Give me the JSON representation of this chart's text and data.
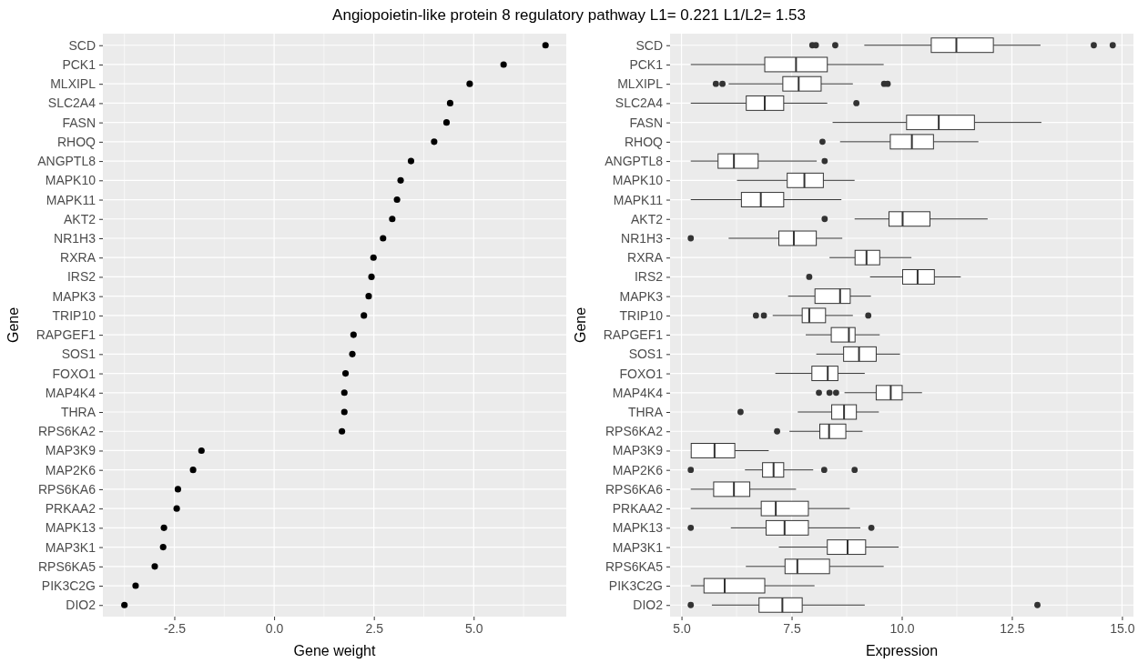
{
  "chart_data": [
    {
      "type": "scatter",
      "title": "Angiopoietin-like protein 8 regulatory pathway L1= 0.221 L1/L2= 1.53",
      "xlabel": "Gene weight",
      "ylabel": "Gene",
      "orientation": "horizontal",
      "grid": true,
      "marker": "circle",
      "color": "#000000",
      "categories": [
        "SCD",
        "PCK1",
        "MLXIPL",
        "SLC2A4",
        "FASN",
        "RHOQ",
        "ANGPTL8",
        "MAPK10",
        "MAPK11",
        "AKT2",
        "NR1H3",
        "RXRA",
        "IRS2",
        "MAPK3",
        "TRIP10",
        "RAPGEF1",
        "SOS1",
        "FOXO1",
        "MAP4K4",
        "THRA",
        "RPS6KA2",
        "MAP3K9",
        "MAP2K6",
        "RPS6KA6",
        "PRKAA2",
        "MAPK13",
        "MAP3K1",
        "RPS6KA5",
        "PIK3C2G",
        "DIO2"
      ],
      "values": [
        6.8,
        5.75,
        4.9,
        4.41,
        4.32,
        4.01,
        3.43,
        3.17,
        3.08,
        2.96,
        2.73,
        2.49,
        2.44,
        2.37,
        2.25,
        1.99,
        1.96,
        1.79,
        1.76,
        1.76,
        1.7,
        -1.82,
        -2.03,
        -2.41,
        -2.44,
        -2.76,
        -2.78,
        -2.99,
        -3.47,
        -3.75
      ],
      "xlim": [
        -4.29,
        7.32
      ],
      "xticks": [
        {
          "value": -2.5,
          "label": "-2.5"
        },
        {
          "value": 0,
          "label": "0.0"
        },
        {
          "value": 2.5,
          "label": "2.5"
        },
        {
          "value": 5,
          "label": "5.0"
        }
      ]
    },
    {
      "type": "box",
      "xlabel": "Expression",
      "ylabel": "Gene",
      "orientation": "horizontal",
      "grid": true,
      "color": "#333333",
      "categories": [
        "SCD",
        "PCK1",
        "MLXIPL",
        "SLC2A4",
        "FASN",
        "RHOQ",
        "ANGPTL8",
        "MAPK10",
        "MAPK11",
        "AKT2",
        "NR1H3",
        "RXRA",
        "IRS2",
        "MAPK3",
        "TRIP10",
        "RAPGEF1",
        "SOS1",
        "FOXO1",
        "MAP4K4",
        "THRA",
        "RPS6KA2",
        "MAP3K9",
        "MAP2K6",
        "RPS6KA6",
        "PRKAA2",
        "MAPK13",
        "MAP3K1",
        "RPS6KA5",
        "PIK3C2G",
        "DIO2"
      ],
      "boxes": [
        {
          "low": 9.15,
          "q1": 10.67,
          "median": 11.24,
          "q3": 12.08,
          "high": 13.15,
          "outliers": [
            7.97,
            8.05,
            8.49,
            14.36,
            14.79
          ]
        },
        {
          "low": 5.21,
          "q1": 6.89,
          "median": 7.6,
          "q3": 8.31,
          "high": 9.59
        },
        {
          "low": 6.07,
          "q1": 7.3,
          "median": 7.66,
          "q3": 8.17,
          "high": 8.89,
          "outliers": [
            5.78,
            5.93,
            9.6,
            9.68
          ]
        },
        {
          "low": 5.21,
          "q1": 6.47,
          "median": 6.89,
          "q3": 7.32,
          "high": 8.31,
          "outliers": [
            8.97
          ]
        },
        {
          "low": 8.43,
          "q1": 10.11,
          "median": 10.84,
          "q3": 11.65,
          "high": 13.17
        },
        {
          "low": 8.6,
          "q1": 9.74,
          "median": 10.23,
          "q3": 10.72,
          "high": 11.74,
          "outliers": [
            8.2
          ]
        },
        {
          "low": 5.21,
          "q1": 5.83,
          "median": 6.19,
          "q3": 6.74,
          "high": 8.07,
          "outliers": [
            8.25
          ]
        },
        {
          "low": 6.26,
          "q1": 7.4,
          "median": 7.79,
          "q3": 8.22,
          "high": 8.93
        },
        {
          "low": 5.21,
          "q1": 6.36,
          "median": 6.8,
          "q3": 7.32,
          "high": 8.63
        },
        {
          "low": 8.93,
          "q1": 9.71,
          "median": 10.02,
          "q3": 10.64,
          "high": 11.95,
          "outliers": [
            8.25
          ]
        },
        {
          "low": 6.07,
          "q1": 7.21,
          "median": 7.55,
          "q3": 8.06,
          "high": 8.65,
          "outliers": [
            5.21
          ]
        },
        {
          "low": 8.36,
          "q1": 8.94,
          "median": 9.2,
          "q3": 9.5,
          "high": 10.22
        },
        {
          "low": 9.28,
          "q1": 10.02,
          "median": 10.36,
          "q3": 10.74,
          "high": 11.34,
          "outliers": [
            7.9
          ]
        },
        {
          "low": 7.42,
          "q1": 8.03,
          "median": 8.6,
          "q3": 8.83,
          "high": 9.3
        },
        {
          "low": 7.07,
          "q1": 7.74,
          "median": 7.9,
          "q3": 8.27,
          "high": 8.89,
          "outliers": [
            6.69,
            6.87,
            9.24
          ]
        },
        {
          "low": 7.82,
          "q1": 8.4,
          "median": 8.8,
          "q3": 8.94,
          "high": 9.5
        },
        {
          "low": 8.06,
          "q1": 8.68,
          "median": 9.03,
          "q3": 9.42,
          "high": 9.96
        },
        {
          "low": 7.13,
          "q1": 7.96,
          "median": 8.32,
          "q3": 8.55,
          "high": 9.16
        },
        {
          "low": 8.7,
          "q1": 9.42,
          "median": 9.75,
          "q3": 10.01,
          "high": 10.46,
          "outliers": [
            8.12,
            8.36,
            8.51
          ]
        },
        {
          "low": 7.64,
          "q1": 8.41,
          "median": 8.69,
          "q3": 8.97,
          "high": 9.48,
          "outliers": [
            6.34
          ]
        },
        {
          "low": 7.45,
          "q1": 8.14,
          "median": 8.35,
          "q3": 8.73,
          "high": 9.11,
          "outliers": [
            7.17
          ]
        },
        {
          "low": 5.22,
          "q1": 5.22,
          "median": 5.75,
          "q3": 6.21,
          "high": 6.98
        },
        {
          "low": 6.44,
          "q1": 6.84,
          "median": 7.09,
          "q3": 7.32,
          "high": 7.99,
          "outliers": [
            5.21,
            8.24,
            8.93
          ]
        },
        {
          "low": 5.21,
          "q1": 5.73,
          "median": 6.19,
          "q3": 6.55,
          "high": 7.6
        },
        {
          "low": 5.21,
          "q1": 6.81,
          "median": 7.14,
          "q3": 7.88,
          "high": 8.82
        },
        {
          "low": 6.12,
          "q1": 6.92,
          "median": 7.34,
          "q3": 7.88,
          "high": 9.06,
          "outliers": [
            5.21,
            9.31
          ]
        },
        {
          "low": 7.21,
          "q1": 8.31,
          "median": 8.77,
          "q3": 9.18,
          "high": 9.93
        },
        {
          "low": 6.46,
          "q1": 7.35,
          "median": 7.63,
          "q3": 8.36,
          "high": 9.59
        },
        {
          "low": 5.21,
          "q1": 5.51,
          "median": 5.98,
          "q3": 6.89,
          "high": 8.02
        },
        {
          "low": 5.69,
          "q1": 6.76,
          "median": 7.29,
          "q3": 7.74,
          "high": 9.16,
          "outliers": [
            5.21,
            13.08
          ]
        }
      ],
      "xlim": [
        4.74,
        15.26
      ],
      "xticks": [
        {
          "value": 5,
          "label": "5.0"
        },
        {
          "value": 7.5,
          "label": "7.5"
        },
        {
          "value": 10,
          "label": "10.0"
        },
        {
          "value": 12.5,
          "label": "12.5"
        },
        {
          "value": 15,
          "label": "15.0"
        }
      ]
    }
  ]
}
